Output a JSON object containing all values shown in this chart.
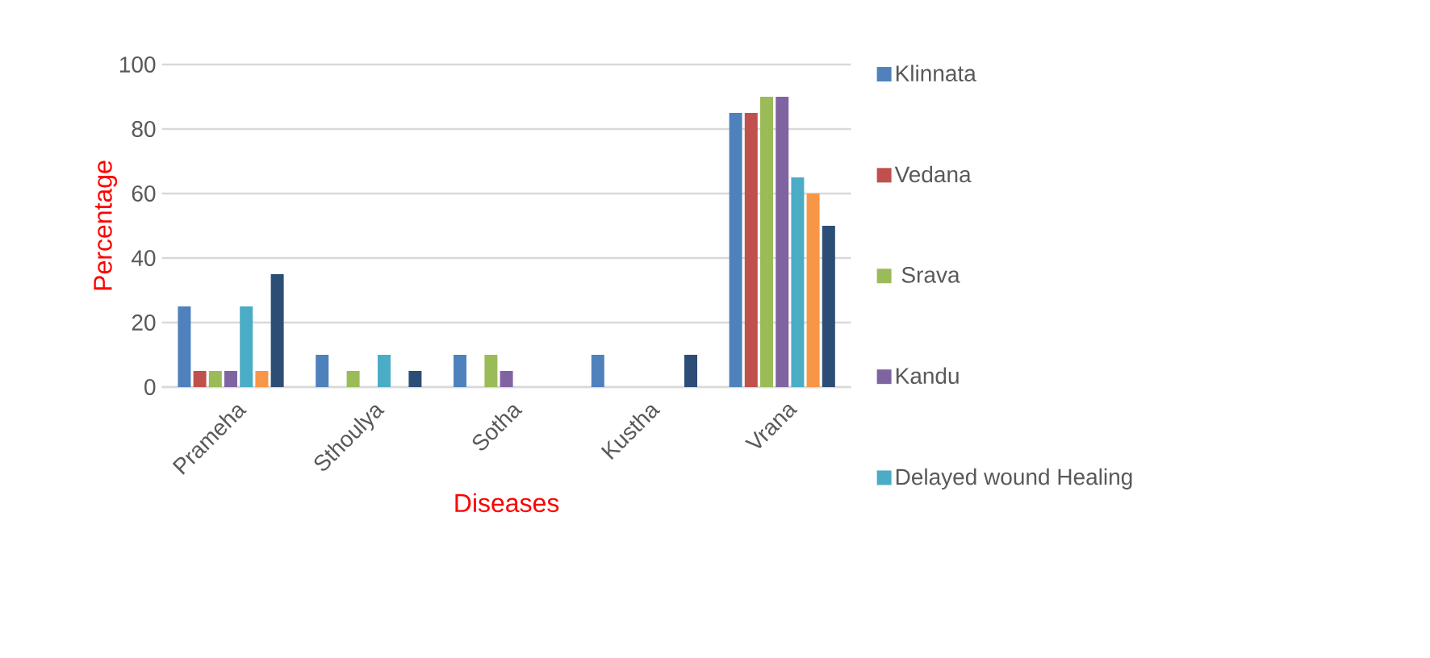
{
  "chart_data": {
    "type": "bar",
    "xlabel": "Diseases",
    "ylabel": "Percentage",
    "categories": [
      "Prameha",
      "Sthoulya",
      "Sotha",
      "Kustha",
      "Vrana"
    ],
    "series": [
      {
        "name": "Klinnata",
        "color": "#4f81bd",
        "values": [
          25,
          10,
          10,
          10,
          85
        ]
      },
      {
        "name": "Vedana",
        "color": "#c0504d",
        "values": [
          5,
          null,
          null,
          null,
          85
        ]
      },
      {
        "name": " Srava",
        "color": "#9bbb59",
        "values": [
          5,
          5,
          10,
          null,
          90
        ]
      },
      {
        "name": "Kandu",
        "color": "#8064a2",
        "values": [
          5,
          null,
          5,
          null,
          90
        ]
      },
      {
        "name": "Delayed wound Healing",
        "color": "#4bacc6",
        "values": [
          25,
          10,
          null,
          null,
          65
        ]
      },
      {
        "color": "#f79646",
        "values": [
          5,
          null,
          null,
          null,
          60
        ]
      },
      {
        "color": "#2c4d75",
        "values": [
          35,
          5,
          null,
          10,
          50
        ]
      }
    ],
    "ylim": [
      0,
      100
    ],
    "yticks": [
      0,
      20,
      40,
      60,
      80,
      100
    ],
    "grid": "y",
    "legend": "right"
  }
}
